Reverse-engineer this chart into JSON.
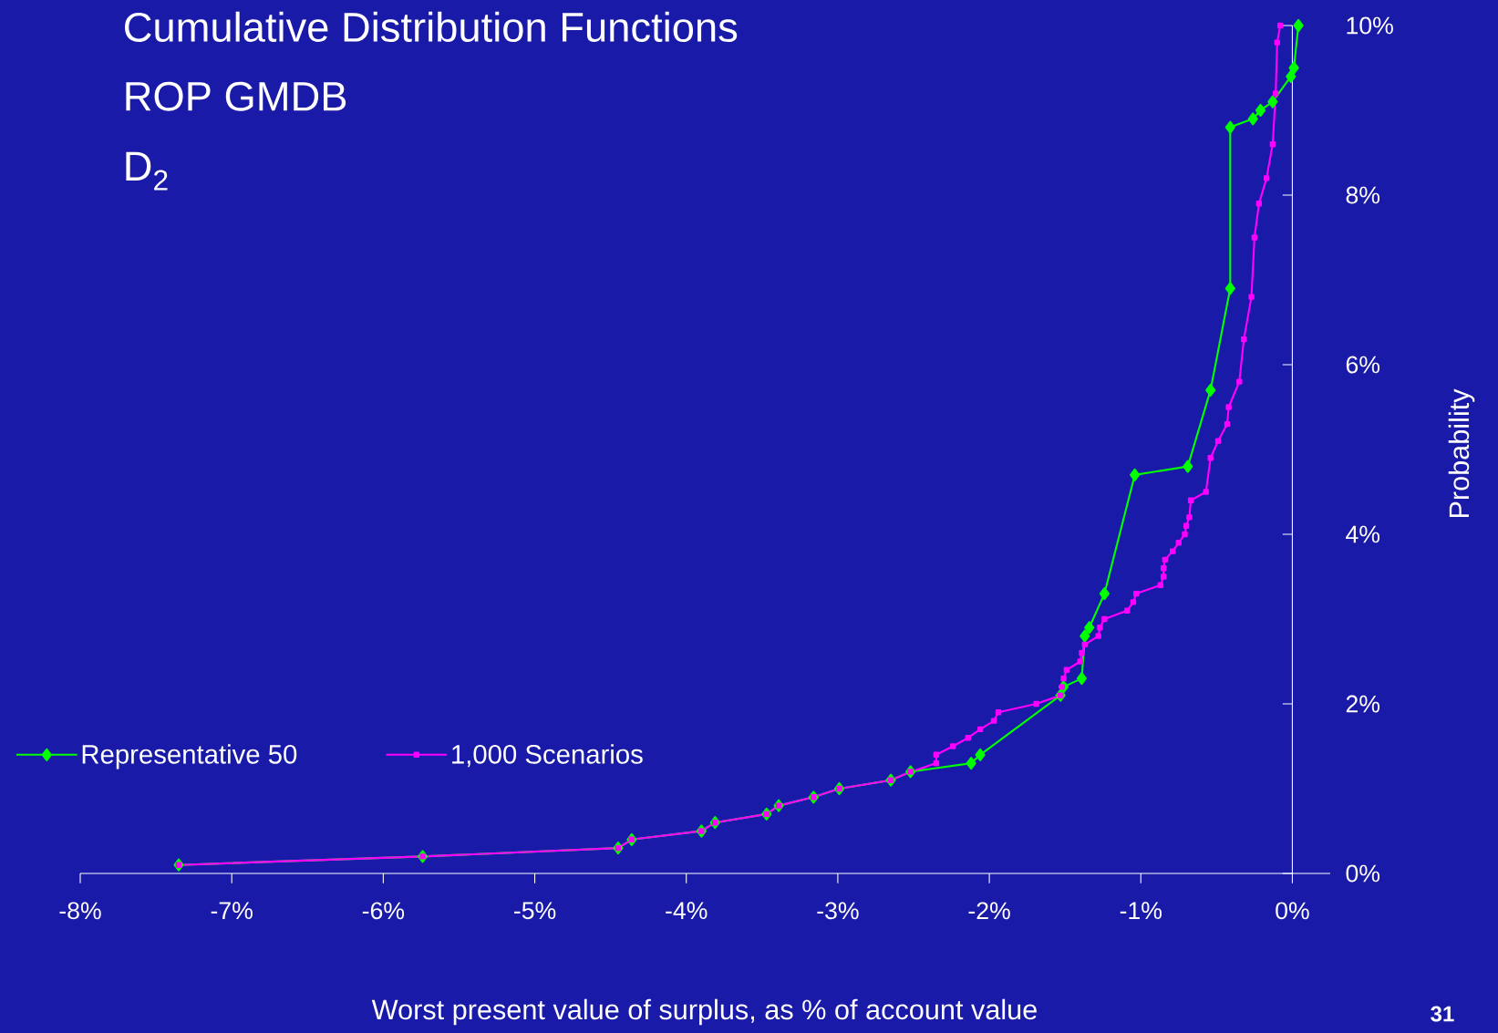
{
  "chart_data": {
    "type": "line",
    "title": "Cumulative Distribution Functions",
    "subtitle": "ROP GMDB",
    "annotations": [
      "D$_{2}$",
      "31"
    ],
    "xlabel": "Worst present value of surplus, as % of account value",
    "ylabel": "Probability",
    "xlim": [
      -8,
      0.25
    ],
    "ylim": [
      0,
      10
    ],
    "xticks": [
      {
        "value": -8,
        "label": "-8%"
      },
      {
        "value": -7,
        "label": "-7%"
      },
      {
        "value": -6,
        "label": "-6%"
      },
      {
        "value": -5,
        "label": "-5%"
      },
      {
        "value": -4,
        "label": "-4%"
      },
      {
        "value": -3,
        "label": "-3%"
      },
      {
        "value": -2,
        "label": "-2%"
      },
      {
        "value": -1,
        "label": "-1%"
      },
      {
        "value": 0,
        "label": "0%"
      }
    ],
    "yticks": [
      {
        "value": 0,
        "label": "0%"
      },
      {
        "value": 2,
        "label": "2%"
      },
      {
        "value": 4,
        "label": "4%"
      },
      {
        "value": 6,
        "label": "6%"
      },
      {
        "value": 8,
        "label": "8%"
      },
      {
        "value": 10,
        "label": "10%"
      }
    ],
    "grid": false,
    "legend": "bottom left",
    "line_style": "solid",
    "series": [
      {
        "name": "Representative 50",
        "color": "#00ff00",
        "marker": "diamond",
        "x": [
          -7.35,
          -5.74,
          -4.45,
          -4.36,
          -3.9,
          -3.81,
          -3.47,
          -3.39,
          -3.16,
          -2.99,
          -2.65,
          -2.52,
          -2.12,
          -2.06,
          -1.53,
          -1.51,
          -1.39,
          -1.37,
          -1.34,
          -1.24,
          -1.04,
          -0.69,
          -0.54,
          -0.41,
          -0.41,
          -0.26,
          -0.21,
          -0.13,
          -0.01,
          0.01,
          0.04
        ],
        "values": [
          0.1,
          0.2,
          0.3,
          0.4,
          0.5,
          0.6,
          0.7,
          0.8,
          0.9,
          1.0,
          1.1,
          1.2,
          1.3,
          1.4,
          2.1,
          2.2,
          2.3,
          2.8,
          2.9,
          3.3,
          4.7,
          4.8,
          5.7,
          6.9,
          8.8,
          8.9,
          9.0,
          9.1,
          9.4,
          9.5,
          10.0
        ]
      },
      {
        "name": "1,000 Scenarios",
        "color": "#ff00ff",
        "marker": "square",
        "x": [
          -7.35,
          -5.74,
          -4.45,
          -4.36,
          -3.9,
          -3.81,
          -3.47,
          -3.39,
          -3.16,
          -2.99,
          -2.65,
          -2.52,
          -2.35,
          -2.35,
          -2.24,
          -2.14,
          -2.06,
          -1.97,
          -1.94,
          -1.69,
          -1.53,
          -1.52,
          -1.51,
          -1.49,
          -1.4,
          -1.39,
          -1.37,
          -1.28,
          -1.27,
          -1.24,
          -1.09,
          -1.05,
          -1.03,
          -0.87,
          -0.85,
          -0.85,
          -0.84,
          -0.79,
          -0.75,
          -0.71,
          -0.7,
          -0.68,
          -0.67,
          -0.57,
          -0.54,
          -0.49,
          -0.43,
          -0.42,
          -0.35,
          -0.32,
          -0.27,
          -0.25,
          -0.22,
          -0.17,
          -0.13,
          -0.11,
          -0.1,
          -0.08
        ],
        "values": [
          0.1,
          0.2,
          0.3,
          0.4,
          0.5,
          0.6,
          0.7,
          0.8,
          0.9,
          1.0,
          1.1,
          1.2,
          1.3,
          1.4,
          1.5,
          1.6,
          1.7,
          1.8,
          1.9,
          2.0,
          2.1,
          2.2,
          2.3,
          2.4,
          2.5,
          2.6,
          2.7,
          2.8,
          2.9,
          3.0,
          3.1,
          3.2,
          3.3,
          3.4,
          3.5,
          3.6,
          3.7,
          3.8,
          3.9,
          4.0,
          4.1,
          4.2,
          4.4,
          4.5,
          4.9,
          5.1,
          5.3,
          5.5,
          5.8,
          6.3,
          6.8,
          7.5,
          7.9,
          8.2,
          8.6,
          9.2,
          9.8,
          10.0
        ]
      }
    ]
  }
}
